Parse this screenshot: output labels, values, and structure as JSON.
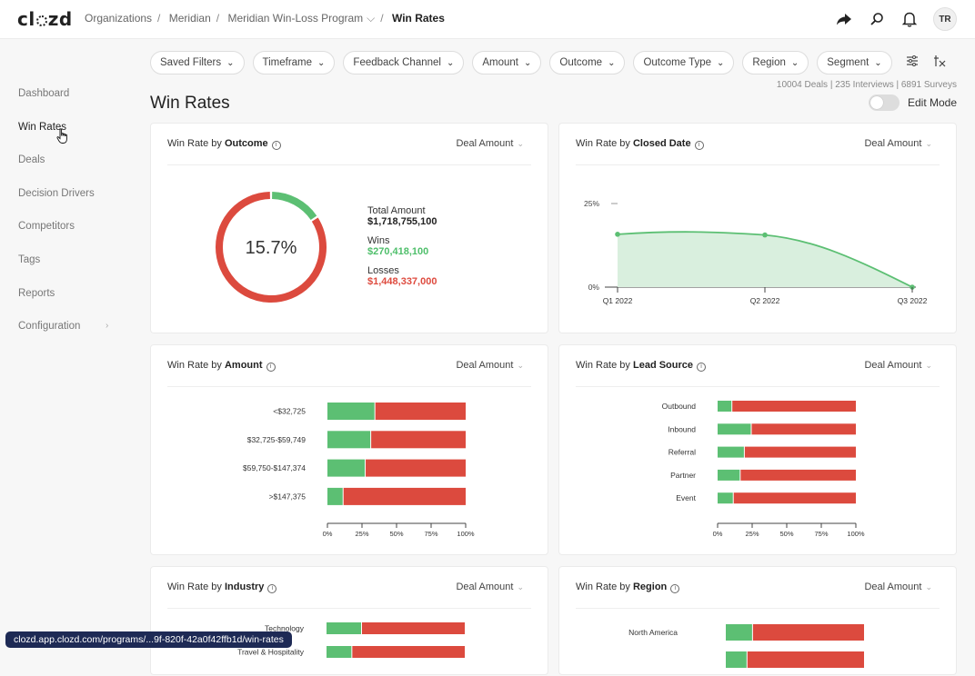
{
  "app": {
    "logo_text": "clozd"
  },
  "breadcrumb": [
    "Organizations",
    "Meridian",
    "Meridian Win-Loss Program",
    "Win Rates"
  ],
  "user": {
    "initials": "TR"
  },
  "sidebar": {
    "items": [
      {
        "label": "Dashboard"
      },
      {
        "label": "Win Rates"
      },
      {
        "label": "Deals"
      },
      {
        "label": "Decision Drivers"
      },
      {
        "label": "Competitors"
      },
      {
        "label": "Tags"
      },
      {
        "label": "Reports"
      },
      {
        "label": "Configuration"
      }
    ]
  },
  "filters": [
    "Saved Filters",
    "Timeframe",
    "Feedback Channel",
    "Amount",
    "Outcome",
    "Outcome Type",
    "Region",
    "Segment"
  ],
  "stats": "10004 Deals | 235 Interviews | 6891 Surveys",
  "page": {
    "title": "Win Rates",
    "edit_mode_label": "Edit Mode",
    "edit_mode_on": false
  },
  "colors": {
    "win": "#5cbf73",
    "loss": "#dc4a3e",
    "area": "#d9efde"
  },
  "cards": {
    "outcome": {
      "title_prefix": "Win Rate by",
      "title_bold": "Outcome",
      "select": "Deal Amount",
      "center_label": "15.7%",
      "total_label": "Total Amount",
      "total_value": "$1,718,755,100",
      "wins_label": "Wins",
      "wins_value": "$270,418,100",
      "losses_label": "Losses",
      "losses_value": "$1,448,337,000"
    },
    "closed_date": {
      "title_prefix": "Win Rate by",
      "title_bold": "Closed Date",
      "select": "Deal Amount"
    },
    "amount": {
      "title_prefix": "Win Rate by",
      "title_bold": "Amount",
      "select": "Deal Amount"
    },
    "lead_source": {
      "title_prefix": "Win Rate by",
      "title_bold": "Lead Source",
      "select": "Deal Amount"
    },
    "industry": {
      "title_prefix": "Win Rate by",
      "title_bold": "Industry",
      "select": "Deal Amount"
    },
    "region": {
      "title_prefix": "Win Rate by",
      "title_bold": "Region",
      "select": "Deal Amount"
    }
  },
  "chart_data": [
    {
      "type": "pie",
      "title": "Win Rate by Outcome",
      "categories": [
        "Wins",
        "Losses"
      ],
      "values": [
        270418100,
        1448337000
      ],
      "win_rate": 15.7
    },
    {
      "type": "area",
      "title": "Win Rate by Closed Date",
      "x": [
        "Q1 2022",
        "Q2 2022",
        "Q3 2022"
      ],
      "y": [
        15.8,
        15.6,
        0.0
      ],
      "yticks": [
        "0%",
        "25%"
      ],
      "ylim": [
        0,
        25
      ]
    },
    {
      "type": "bar",
      "title": "Win Rate by Amount",
      "categories": [
        "<$32,725",
        "$32,725-$59,749",
        "$59,750-$147,374",
        ">$147,375"
      ],
      "series": [
        {
          "name": "Wins",
          "values": [
            34,
            31,
            27,
            11
          ]
        },
        {
          "name": "Losses",
          "values": [
            66,
            69,
            73,
            89
          ]
        }
      ],
      "xticks": [
        "0%",
        "25%",
        "50%",
        "75%",
        "100%"
      ]
    },
    {
      "type": "bar",
      "title": "Win Rate by Lead Source",
      "categories": [
        "Outbound",
        "Inbound",
        "Referral",
        "Partner",
        "Event"
      ],
      "series": [
        {
          "name": "Wins",
          "values": [
            10,
            24,
            19,
            16,
            11
          ]
        },
        {
          "name": "Losses",
          "values": [
            90,
            76,
            81,
            84,
            89
          ]
        }
      ],
      "xticks": [
        "0%",
        "25%",
        "50%",
        "75%",
        "100%"
      ]
    },
    {
      "type": "bar",
      "title": "Win Rate by Industry",
      "categories": [
        "Technology",
        "Travel & Hospitality"
      ],
      "series": [
        {
          "name": "Wins",
          "values": [
            25,
            18
          ]
        },
        {
          "name": "Losses",
          "values": [
            75,
            82
          ]
        }
      ]
    },
    {
      "type": "bar",
      "title": "Win Rate by Region",
      "categories": [
        "North America",
        ""
      ],
      "series": [
        {
          "name": "Wins",
          "values": [
            19,
            15
          ]
        },
        {
          "name": "Losses",
          "values": [
            81,
            85
          ]
        }
      ]
    }
  ],
  "status_url": "clozd.app.clozd.com/programs/...9f-820f-42a0f42ffb1d/win-rates"
}
